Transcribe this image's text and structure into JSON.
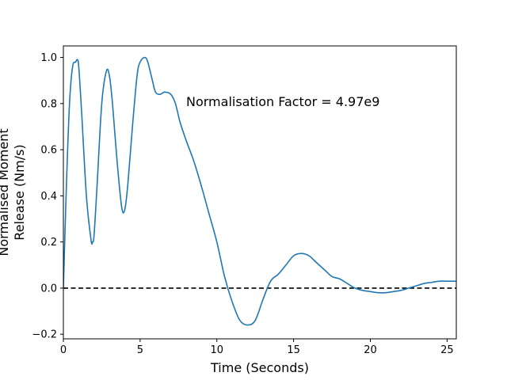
{
  "chart_data": {
    "type": "line",
    "title": "",
    "xlabel": "Time (Seconds)",
    "ylabel_lines": [
      "Normalised Moment",
      "Release (Nm/s)"
    ],
    "xlim": [
      0,
      25.6
    ],
    "ylim": [
      -0.22,
      1.05
    ],
    "x_ticks": [
      0,
      5,
      10,
      15,
      20,
      25
    ],
    "y_ticks": [
      -0.2,
      0.0,
      0.2,
      0.4,
      0.6,
      0.8,
      1.0
    ],
    "y_tick_labels": [
      "−0.2",
      "0.0",
      "0.2",
      "0.4",
      "0.6",
      "0.8",
      "1.0"
    ],
    "grid": false,
    "annotation": {
      "text": "Normalisation Factor = 4.97e9",
      "x": 8.0,
      "y": 0.81
    },
    "reference_line": {
      "y": 0.0,
      "style": "dashed",
      "color": "#000000"
    },
    "series": [
      {
        "color": "#1f77b4",
        "x": [
          0,
          0.2,
          0.4,
          0.6,
          0.8,
          0.9,
          1.0,
          1.2,
          1.5,
          1.8,
          1.9,
          2.0,
          2.2,
          2.5,
          2.8,
          3.0,
          3.2,
          3.5,
          3.8,
          4.0,
          4.2,
          4.5,
          4.8,
          5.0,
          5.3,
          5.5,
          5.8,
          6.0,
          6.3,
          6.6,
          7.0,
          7.3,
          7.6,
          8.0,
          8.5,
          9.0,
          9.5,
          10.0,
          10.5,
          11.0,
          11.5,
          12.0,
          12.5,
          13.0,
          13.5,
          14.0,
          14.5,
          15.0,
          15.5,
          16.0,
          16.5,
          17.0,
          17.5,
          18.0,
          18.5,
          19.0,
          19.5,
          20.0,
          20.5,
          21.0,
          21.5,
          22.0,
          22.5,
          23.0,
          23.5,
          24.0,
          24.5,
          25.0,
          25.6
        ],
        "values": [
          0.0,
          0.45,
          0.8,
          0.96,
          0.98,
          0.99,
          0.96,
          0.75,
          0.4,
          0.21,
          0.2,
          0.23,
          0.45,
          0.8,
          0.94,
          0.92,
          0.8,
          0.55,
          0.35,
          0.34,
          0.45,
          0.7,
          0.92,
          0.98,
          1.0,
          0.98,
          0.9,
          0.85,
          0.84,
          0.85,
          0.84,
          0.8,
          0.72,
          0.64,
          0.55,
          0.44,
          0.32,
          0.2,
          0.05,
          -0.06,
          -0.14,
          -0.16,
          -0.14,
          -0.05,
          0.03,
          0.06,
          0.1,
          0.14,
          0.15,
          0.14,
          0.11,
          0.08,
          0.05,
          0.04,
          0.02,
          0.0,
          -0.01,
          -0.015,
          -0.02,
          -0.02,
          -0.015,
          -0.01,
          0.0,
          0.01,
          0.02,
          0.025,
          0.03,
          0.03,
          0.03
        ]
      }
    ]
  }
}
